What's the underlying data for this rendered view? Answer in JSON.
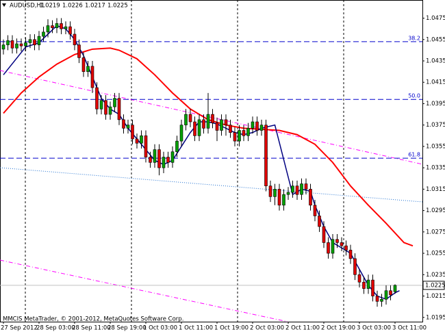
{
  "chart_data": {
    "type": "candlestick",
    "header": {
      "symbol": "AUDUSD,H1",
      "quote": [
        "1.0219",
        "1.0226",
        "1.0217",
        "1.0225"
      ]
    },
    "footer": "MMCIS MetaTrader, © 2001-2012, MetaQuotes Software Corp.",
    "categories": [
      "27 Sep 2012",
      null,
      null,
      null,
      null,
      null,
      null,
      null,
      "28 Sep 03:00",
      null,
      null,
      null,
      null,
      null,
      null,
      null,
      "28 Sep 11:00",
      null,
      null,
      null,
      null,
      null,
      null,
      null,
      "28 Sep 19:00",
      null,
      null,
      null,
      null,
      null,
      null,
      null,
      "1 Oct 03:00",
      null,
      null,
      null,
      null,
      null,
      null,
      null,
      "1 Oct 11:00",
      null,
      null,
      null,
      null,
      null,
      null,
      null,
      "1 Oct 19:00",
      null,
      null,
      null,
      null,
      null,
      null,
      null,
      "2 Oct 03:00",
      null,
      null,
      null,
      null,
      null,
      null,
      null,
      "2 Oct 11:00",
      null,
      null,
      null,
      null,
      null,
      null,
      null,
      "2 Oct 19:00",
      null,
      null,
      null,
      null,
      null,
      null,
      null,
      "3 Oct 03:00",
      null,
      null,
      null,
      null,
      null,
      null,
      null,
      "3 Oct 11:00"
    ],
    "open": [
      1.0446,
      1.045,
      1.0454,
      1.0447,
      1.0451,
      1.0449,
      1.0452,
      1.0455,
      1.045,
      1.0458,
      1.0462,
      1.0468,
      1.0466,
      1.047,
      1.0465,
      1.0467,
      1.046,
      1.045,
      1.0438,
      1.0425,
      1.043,
      1.041,
      1.039,
      1.0398,
      1.0385,
      1.0392,
      1.04,
      1.038,
      1.0372,
      1.0375,
      1.0362,
      1.0358,
      1.0365,
      1.0345,
      1.034,
      1.0352,
      1.0335,
      1.0345,
      1.034,
      1.035,
      1.036,
      1.0375,
      1.0385,
      1.0378,
      1.0365,
      1.038,
      1.0372,
      1.0385,
      1.0377,
      1.037,
      1.038,
      1.0375,
      1.0368,
      1.036,
      1.037,
      1.0365,
      1.0372,
      1.0378,
      1.037,
      1.0375,
      1.0318,
      1.0308,
      1.0315,
      1.03,
      1.031,
      1.0312,
      1.0318,
      1.031,
      1.032,
      1.0315,
      1.03,
      1.029,
      1.028,
      1.0265,
      1.0255,
      1.0268,
      1.0265,
      1.0262,
      1.0258,
      1.025,
      1.0235,
      1.0228,
      1.0222,
      1.023,
      1.0215,
      1.021,
      1.0212,
      1.022,
      1.0219
    ],
    "high": [
      1.0455,
      1.0459,
      1.0459,
      1.0456,
      1.0456,
      1.0457,
      1.046,
      1.046,
      1.0463,
      1.0467,
      1.0474,
      1.0473,
      1.0475,
      1.0475,
      1.0472,
      1.0472,
      1.0465,
      1.0455,
      1.0443,
      1.0435,
      1.0435,
      1.0415,
      1.0403,
      1.0403,
      1.0397,
      1.0405,
      1.0405,
      1.0385,
      1.038,
      1.038,
      1.0367,
      1.037,
      1.037,
      1.035,
      1.0357,
      1.0357,
      1.035,
      1.035,
      1.0355,
      1.0365,
      1.038,
      1.039,
      1.039,
      1.0383,
      1.0385,
      1.0385,
      1.0405,
      1.039,
      1.0382,
      1.0385,
      1.0385,
      1.038,
      1.0373,
      1.0375,
      1.0375,
      1.0377,
      1.0383,
      1.0383,
      1.038,
      1.038,
      1.0323,
      1.032,
      1.032,
      1.0315,
      1.0317,
      1.0323,
      1.0323,
      1.0325,
      1.0325,
      1.032,
      1.0305,
      1.0295,
      1.0285,
      1.027,
      1.0273,
      1.0273,
      1.027,
      1.0267,
      1.0263,
      1.0255,
      1.024,
      1.0233,
      1.0235,
      1.0235,
      1.022,
      1.0217,
      1.0225,
      1.0225,
      1.0226
    ],
    "low": [
      1.0441,
      1.0445,
      1.0442,
      1.0442,
      1.0444,
      1.0444,
      1.0447,
      1.0445,
      1.0445,
      1.0453,
      1.0457,
      1.0461,
      1.0461,
      1.046,
      1.046,
      1.0455,
      1.0445,
      1.0433,
      1.042,
      1.042,
      1.0405,
      1.0385,
      1.0385,
      1.038,
      1.038,
      1.0387,
      1.0375,
      1.0367,
      1.0367,
      1.0357,
      1.0353,
      1.0353,
      1.034,
      1.0335,
      1.0335,
      1.0328,
      1.033,
      1.0335,
      1.0335,
      1.0345,
      1.0355,
      1.037,
      1.0373,
      1.036,
      1.036,
      1.0367,
      1.0367,
      1.0372,
      1.036,
      1.0365,
      1.0365,
      1.0363,
      1.0355,
      1.0355,
      1.036,
      1.036,
      1.0367,
      1.0365,
      1.0365,
      1.0313,
      1.0303,
      1.03,
      1.0295,
      1.0295,
      1.0305,
      1.0307,
      1.0305,
      1.0305,
      1.031,
      1.0295,
      1.0285,
      1.0275,
      1.026,
      1.025,
      1.025,
      1.026,
      1.0257,
      1.0253,
      1.0245,
      1.023,
      1.0223,
      1.0217,
      1.0217,
      1.021,
      1.0205,
      1.0205,
      1.0207,
      1.0211,
      1.0217
    ],
    "close": [
      1.045,
      1.0454,
      1.0447,
      1.0451,
      1.0449,
      1.0452,
      1.0455,
      1.045,
      1.0458,
      1.0462,
      1.0468,
      1.0466,
      1.047,
      1.0465,
      1.0467,
      1.046,
      1.045,
      1.0438,
      1.0425,
      1.043,
      1.041,
      1.039,
      1.0398,
      1.0385,
      1.0392,
      1.04,
      1.038,
      1.0372,
      1.0375,
      1.0362,
      1.0358,
      1.0365,
      1.0345,
      1.034,
      1.0352,
      1.0335,
      1.0345,
      1.034,
      1.035,
      1.036,
      1.0375,
      1.0385,
      1.0378,
      1.0365,
      1.038,
      1.0372,
      1.0385,
      1.0377,
      1.037,
      1.038,
      1.0375,
      1.0368,
      1.036,
      1.037,
      1.0365,
      1.0372,
      1.0378,
      1.037,
      1.0375,
      1.0318,
      1.0308,
      1.0315,
      1.03,
      1.031,
      1.0312,
      1.0318,
      1.031,
      1.032,
      1.0315,
      1.03,
      1.029,
      1.028,
      1.0265,
      1.0255,
      1.0268,
      1.0265,
      1.0262,
      1.0258,
      1.025,
      1.0235,
      1.0228,
      1.0222,
      1.023,
      1.0215,
      1.021,
      1.0212,
      1.022,
      1.0216,
      1.0225
    ],
    "up_color": "#00a000",
    "down_color": "#e00000",
    "moving_averages": [
      {
        "color": "#ff0000",
        "x": [
          0,
          4,
          8,
          12,
          16,
          20,
          24,
          26,
          30,
          34,
          38,
          42,
          46,
          50,
          54,
          58,
          62,
          66,
          70,
          74,
          78,
          82,
          86,
          90,
          92
        ],
        "values": [
          1.0386,
          1.0405,
          1.042,
          1.0432,
          1.0441,
          1.0446,
          1.0447,
          1.0445,
          1.0437,
          1.0422,
          1.0405,
          1.039,
          1.038,
          1.0375,
          1.0372,
          1.0371,
          1.037,
          1.0366,
          1.0357,
          1.034,
          1.0318,
          1.03,
          1.0283,
          1.0265,
          1.0262
        ]
      },
      {
        "color": "#000080",
        "x": [
          0,
          5,
          8,
          12,
          14,
          16,
          18,
          20,
          22,
          24,
          26,
          28,
          30,
          32,
          34,
          36,
          38,
          40,
          42,
          44,
          46,
          48,
          50,
          52,
          54,
          56,
          58,
          61,
          65,
          67,
          69,
          70,
          72,
          74,
          76,
          78,
          80,
          82,
          84,
          86,
          88,
          89
        ],
        "values": [
          1.0422,
          1.0448,
          1.0452,
          1.0468,
          1.0465,
          1.0455,
          1.044,
          1.042,
          1.04,
          1.039,
          1.0385,
          1.0372,
          1.0362,
          1.0352,
          1.0342,
          1.0338,
          1.0342,
          1.0355,
          1.0368,
          1.0378,
          1.0378,
          1.0376,
          1.0372,
          1.0368,
          1.0366,
          1.0368,
          1.0372,
          1.0375,
          1.031,
          1.0315,
          1.0313,
          1.03,
          1.028,
          1.0265,
          1.026,
          1.0255,
          1.024,
          1.0225,
          1.0215,
          1.0212,
          1.0218,
          1.022
        ]
      }
    ],
    "fib_levels": [
      {
        "label": "38.2",
        "value": 1.0453
      },
      {
        "label": "50.0",
        "value": 1.0399
      },
      {
        "label": "61.8",
        "value": 1.0344
      }
    ],
    "last_price": 1.0225,
    "ylim": [
      1.0191,
      1.0492
    ],
    "yticks": [
      1.0475,
      1.0455,
      1.0435,
      1.0415,
      1.0395,
      1.0375,
      1.0355,
      1.0335,
      1.0315,
      1.0295,
      1.0275,
      1.0255,
      1.0235,
      1.0215,
      1.0195
    ]
  }
}
